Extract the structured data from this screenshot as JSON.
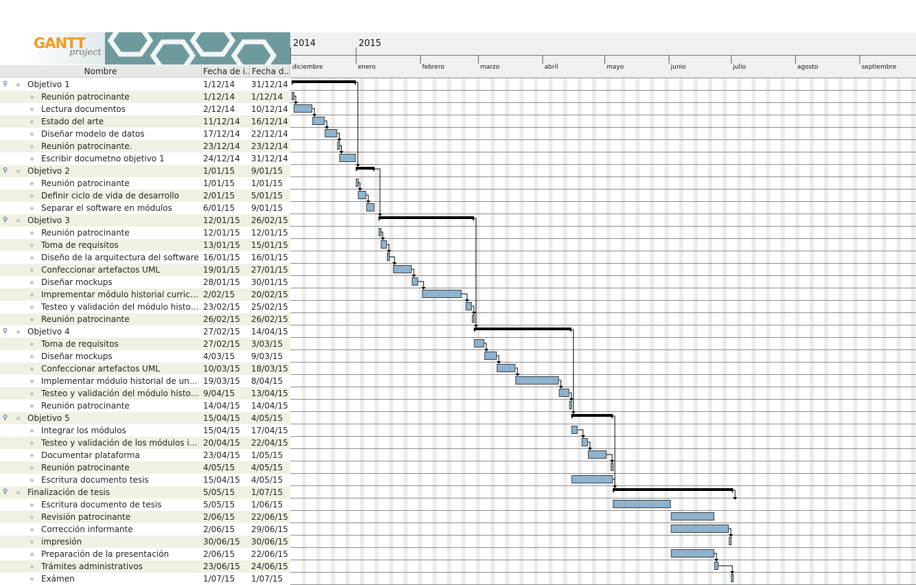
{
  "app": {
    "logo_text": "GANTT",
    "logo_sub": "project"
  },
  "columns": {
    "name": "Nombre",
    "start": "Fecha de i...",
    "end": "Fecha d..."
  },
  "timeline": {
    "years": [
      "2014",
      "2015"
    ],
    "months": [
      "diciembre",
      "enero",
      "febrero",
      "marzo",
      "abril",
      "mayo",
      "junio",
      "julio",
      "agosto",
      "septiembre"
    ]
  },
  "colors": {
    "bar": "#8fb3ce",
    "bar_border": "#3d3d3d",
    "summary": "#000000",
    "row_alt": "#f1f1e3"
  },
  "tasks": [
    {
      "name": "Objetivo 1",
      "start": "1/12/14",
      "end": "31/12/14",
      "group": true
    },
    {
      "name": "Reunión patrocinante",
      "start": "1/12/14",
      "end": "1/12/14"
    },
    {
      "name": "Lectura documentos",
      "start": "2/12/14",
      "end": "10/12/14"
    },
    {
      "name": "Estado del arte",
      "start": "11/12/14",
      "end": "16/12/14"
    },
    {
      "name": "Diseñar modelo de datos",
      "start": "17/12/14",
      "end": "22/12/14"
    },
    {
      "name": "Reunión patrocinante.",
      "start": "23/12/14",
      "end": "23/12/14"
    },
    {
      "name": "Escribir documetno objetivo 1",
      "start": "24/12/14",
      "end": "31/12/14"
    },
    {
      "name": "Objetivo 2",
      "start": "1/01/15",
      "end": "9/01/15",
      "group": true
    },
    {
      "name": "Reunión patrocinante",
      "start": "1/01/15",
      "end": "1/01/15"
    },
    {
      "name": "Definir ciclo de vida de desarrollo",
      "start": "2/01/15",
      "end": "5/01/15"
    },
    {
      "name": "Separar el software en módulos",
      "start": "6/01/15",
      "end": "9/01/15"
    },
    {
      "name": "Objetivo 3",
      "start": "12/01/15",
      "end": "26/02/15",
      "group": true
    },
    {
      "name": "Reunión patrocinante",
      "start": "12/01/15",
      "end": "12/01/15"
    },
    {
      "name": "Toma de requisitos",
      "start": "13/01/15",
      "end": "15/01/15"
    },
    {
      "name": "Diseño de la arquitectura del software",
      "start": "16/01/15",
      "end": "16/01/15"
    },
    {
      "name": "Confeccionar artefactos UML",
      "start": "19/01/15",
      "end": "27/01/15"
    },
    {
      "name": "Diseñar mockups",
      "start": "28/01/15",
      "end": "30/01/15"
    },
    {
      "name": "Imprementar módulo historial curricular",
      "start": "2/02/15",
      "end": "20/02/15"
    },
    {
      "name": "Testeo y validación del módulo historial c...",
      "start": "23/02/15",
      "end": "25/02/15"
    },
    {
      "name": "Reunión patrocinante",
      "start": "26/02/15",
      "end": "26/02/15"
    },
    {
      "name": "Objetivo 4",
      "start": "27/02/15",
      "end": "14/04/15",
      "group": true
    },
    {
      "name": "Toma de requisitos",
      "start": "27/02/15",
      "end": "3/03/15"
    },
    {
      "name": "Diseñar mockups",
      "start": "4/03/15",
      "end": "9/03/15"
    },
    {
      "name": "Confeccionar artefactos UML",
      "start": "10/03/15",
      "end": "18/03/15"
    },
    {
      "name": "Implementar módulo historial de una es...",
      "start": "19/03/15",
      "end": "8/04/15"
    },
    {
      "name": "Testeo y validación del módulo historial ...",
      "start": "9/04/15",
      "end": "13/04/15"
    },
    {
      "name": "Reunión patrocinante",
      "start": "14/04/15",
      "end": "14/04/15"
    },
    {
      "name": "Objetivo 5",
      "start": "15/04/15",
      "end": "4/05/15",
      "group": true
    },
    {
      "name": "Integrar los módulos",
      "start": "15/04/15",
      "end": "17/04/15"
    },
    {
      "name": "Testeo y validación de los módulos integ...",
      "start": "20/04/15",
      "end": "22/04/15"
    },
    {
      "name": "Documentar plataforma",
      "start": "23/04/15",
      "end": "1/05/15"
    },
    {
      "name": "Reunión patrocinante",
      "start": "4/05/15",
      "end": "4/05/15"
    },
    {
      "name": "Escritura documento tesis",
      "start": "15/04/15",
      "end": "4/05/15"
    },
    {
      "name": "Finalización de tesis",
      "start": "5/05/15",
      "end": "1/07/15",
      "group": true
    },
    {
      "name": "Escritura documento de tesis",
      "start": "5/05/15",
      "end": "1/06/15"
    },
    {
      "name": "Revisión patrocinante",
      "start": "2/06/15",
      "end": "22/06/15"
    },
    {
      "name": "Corrección informante",
      "start": "2/06/15",
      "end": "29/06/15"
    },
    {
      "name": "impresión",
      "start": "30/06/15",
      "end": "30/06/15"
    },
    {
      "name": "Preparación de la presentación",
      "start": "2/06/15",
      "end": "22/06/15"
    },
    {
      "name": "Trámites administrativos",
      "start": "23/06/15",
      "end": "24/06/15"
    },
    {
      "name": "Exámen",
      "start": "1/07/15",
      "end": "1/07/15"
    }
  ]
}
